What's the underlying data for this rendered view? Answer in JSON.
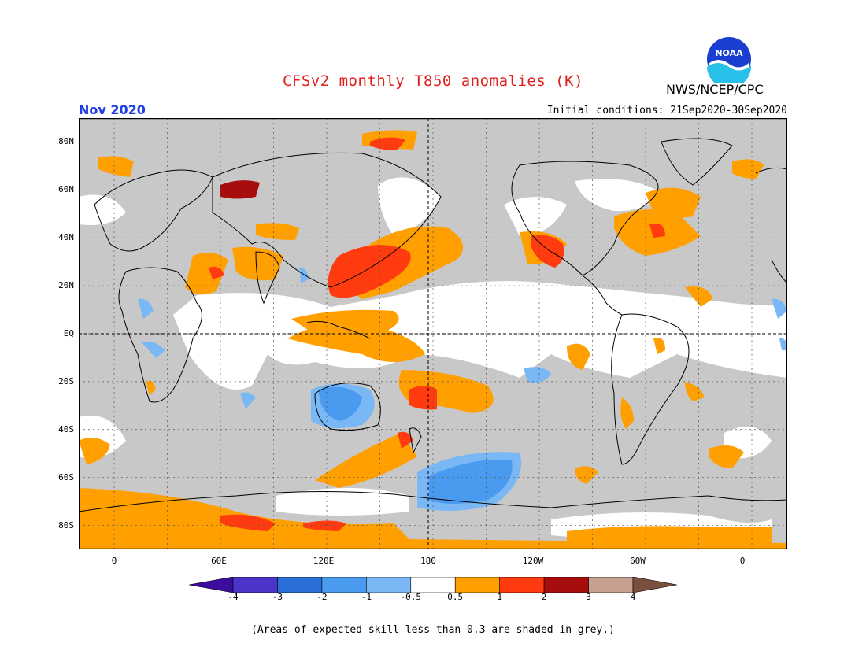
{
  "header": {
    "title": "CFSv2 monthly T850 anomalies (K)",
    "agency": "NWS/NCEP/CPC",
    "logo_text": "NOAA",
    "month": "Nov 2020",
    "initial_conditions": "Initial conditions: 21Sep2020-30Sep2020"
  },
  "map": {
    "projection": "equirectangular",
    "lon_range": [
      -20,
      380
    ],
    "lat_range": [
      -90,
      90
    ],
    "grid": true,
    "lat_labels": [
      "80N",
      "60N",
      "40N",
      "20N",
      "EQ",
      "20S",
      "40S",
      "60S",
      "80S"
    ],
    "lon_labels": [
      "0",
      "60E",
      "120E",
      "180",
      "120W",
      "60W",
      "0"
    ],
    "background_color": "#c8c8c8"
  },
  "colorbar": {
    "ticks": [
      "-4",
      "-3",
      "-2",
      "-1",
      "-0.5",
      "0.5",
      "1",
      "2",
      "3",
      "4"
    ],
    "colors": [
      "#3a0d9e",
      "#4b35c8",
      "#2a6fd8",
      "#4a9af0",
      "#7ab8f5",
      "#ffffff",
      "#ff9f00",
      "#ff3b0f",
      "#a80d0d",
      "#c8a090",
      "#7a4f3f"
    ]
  },
  "footnote": "(Areas of expected skill less than 0.3 are shaded in grey.)"
}
